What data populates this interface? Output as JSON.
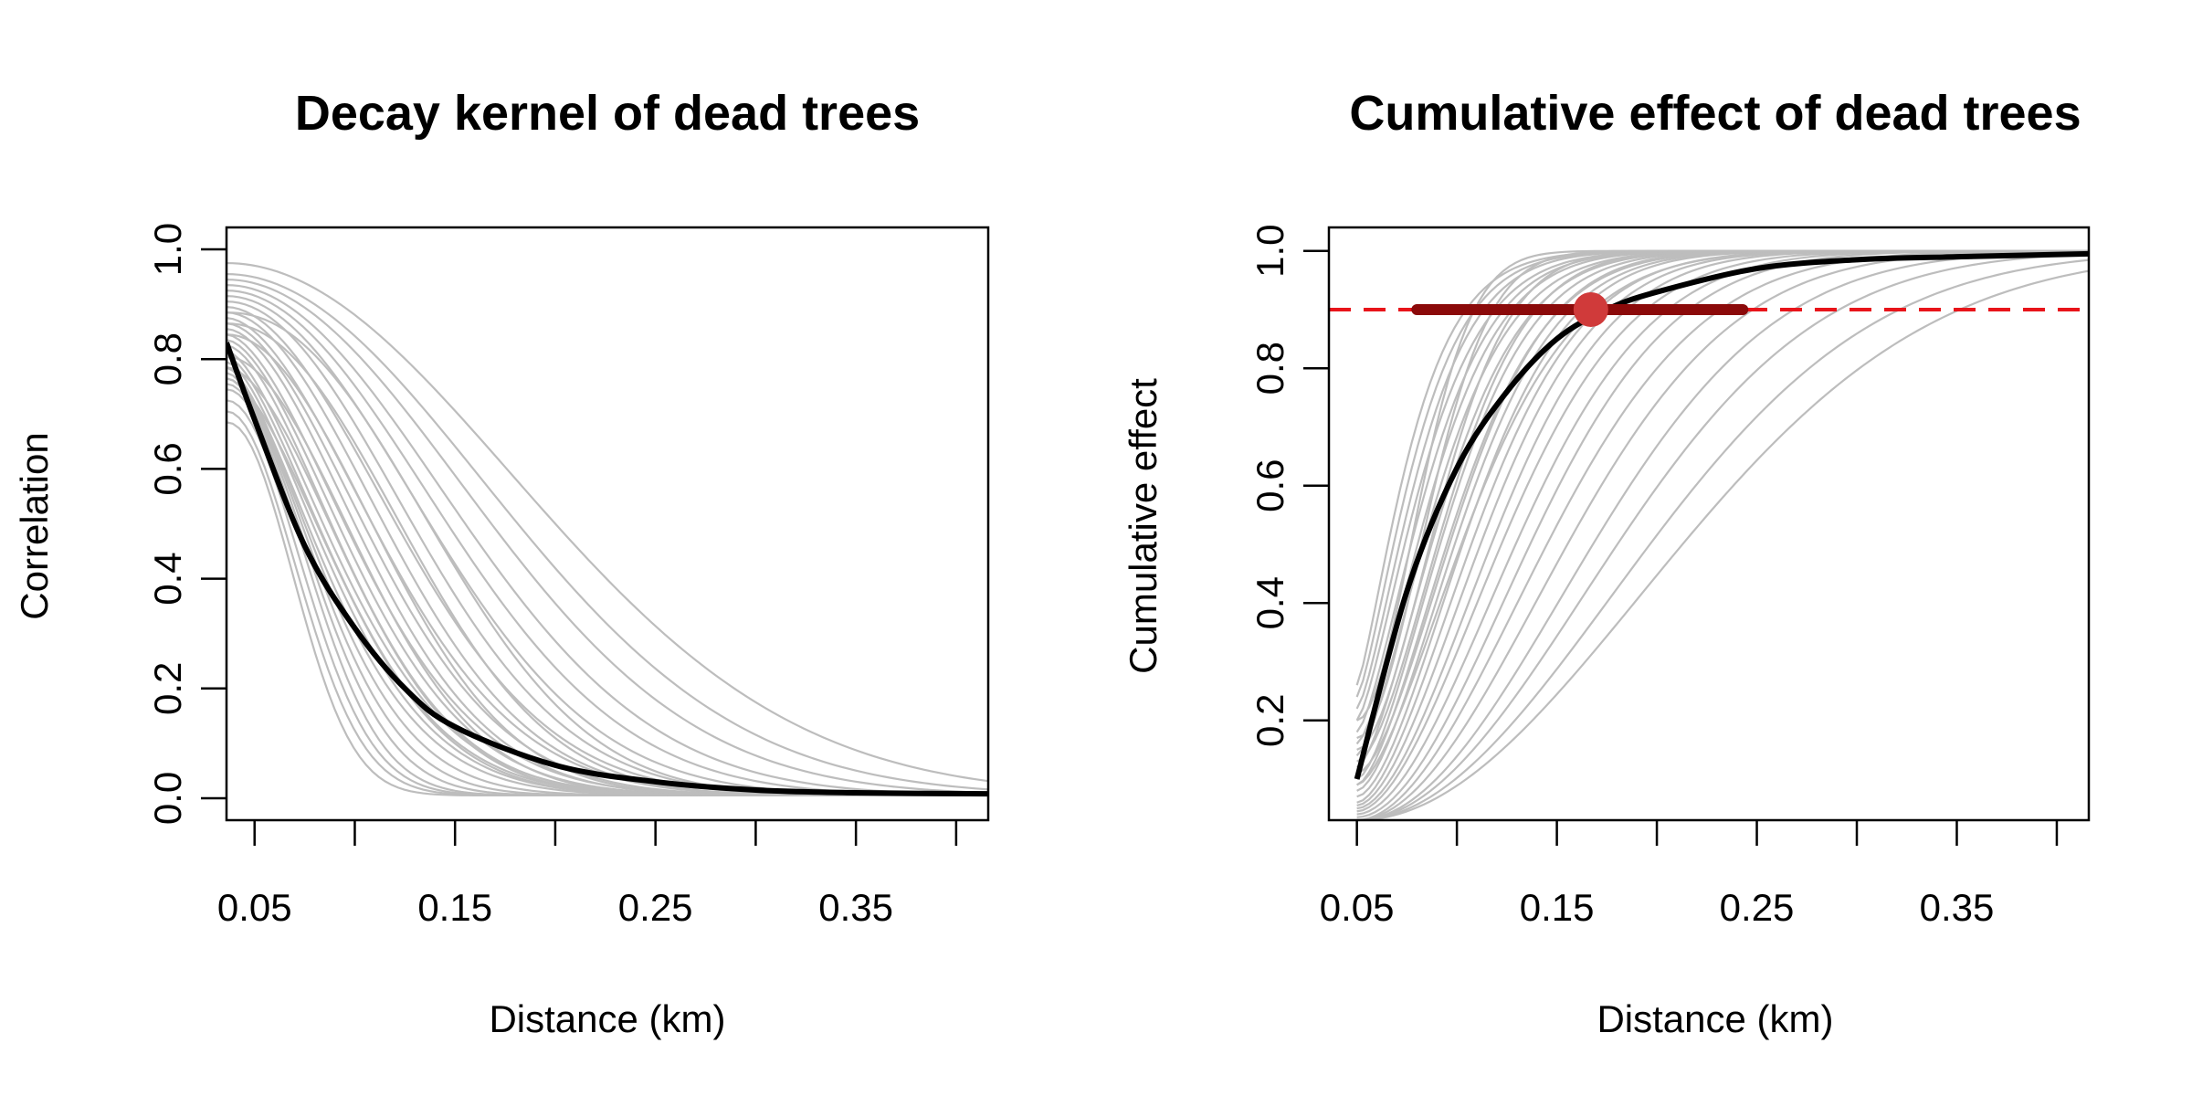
{
  "chart_data": [
    {
      "type": "line",
      "title": "Decay kernel of dead trees",
      "xlabel": "Distance (km)",
      "ylabel": "Correlation",
      "xlim": [
        0.036,
        0.416
      ],
      "ylim": [
        -0.04,
        1.04
      ],
      "x_ticks": [
        0.05,
        0.15,
        0.25,
        0.35
      ],
      "x_minor_ticks": [
        0.05,
        0.1,
        0.15,
        0.2,
        0.25,
        0.3,
        0.35,
        0.4
      ],
      "y_ticks": [
        0.0,
        0.2,
        0.4,
        0.6,
        0.8,
        1.0
      ],
      "mean_curve": {
        "color": "#000000",
        "x": [
          0.036,
          0.05,
          0.075,
          0.1,
          0.125,
          0.15,
          0.2,
          0.25,
          0.3,
          0.35,
          0.416
        ],
        "y": [
          0.83,
          0.69,
          0.46,
          0.31,
          0.2,
          0.13,
          0.06,
          0.03,
          0.015,
          0.01,
          0.008
        ]
      },
      "sample_curves": {
        "color": "#bdbdbd",
        "description_params": "gaussian-like decay y = a*exp(-((x-0.036)/w)^p)",
        "curves": [
          {
            "a": 0.97,
            "w": 0.2,
            "p": 2.0
          },
          {
            "a": 0.95,
            "w": 0.18,
            "p": 2.0
          },
          {
            "a": 0.94,
            "w": 0.165,
            "p": 2.0
          },
          {
            "a": 0.93,
            "w": 0.15,
            "p": 2.0
          },
          {
            "a": 0.92,
            "w": 0.14,
            "p": 2.0
          },
          {
            "a": 0.91,
            "w": 0.13,
            "p": 2.0
          },
          {
            "a": 0.9,
            "w": 0.12,
            "p": 2.0
          },
          {
            "a": 0.89,
            "w": 0.112,
            "p": 1.9
          },
          {
            "a": 0.88,
            "w": 0.105,
            "p": 1.9
          },
          {
            "a": 0.87,
            "w": 0.1,
            "p": 1.8
          },
          {
            "a": 0.86,
            "w": 0.095,
            "p": 1.8
          },
          {
            "a": 0.85,
            "w": 0.09,
            "p": 1.8
          },
          {
            "a": 0.84,
            "w": 0.086,
            "p": 1.7
          },
          {
            "a": 0.83,
            "w": 0.082,
            "p": 1.7
          },
          {
            "a": 0.82,
            "w": 0.078,
            "p": 1.7
          },
          {
            "a": 0.81,
            "w": 0.075,
            "p": 1.6
          },
          {
            "a": 0.8,
            "w": 0.072,
            "p": 1.6
          },
          {
            "a": 0.79,
            "w": 0.069,
            "p": 1.6
          },
          {
            "a": 0.78,
            "w": 0.066,
            "p": 1.6
          },
          {
            "a": 0.77,
            "w": 0.063,
            "p": 1.7
          },
          {
            "a": 0.76,
            "w": 0.06,
            "p": 1.8
          },
          {
            "a": 0.75,
            "w": 0.057,
            "p": 1.9
          },
          {
            "a": 0.74,
            "w": 0.054,
            "p": 2.0
          },
          {
            "a": 0.72,
            "w": 0.051,
            "p": 2.0
          },
          {
            "a": 0.7,
            "w": 0.048,
            "p": 2.0
          },
          {
            "a": 0.68,
            "w": 0.045,
            "p": 2.1
          },
          {
            "a": 0.88,
            "w": 0.13,
            "p": 2.2
          },
          {
            "a": 0.86,
            "w": 0.115,
            "p": 2.1
          },
          {
            "a": 0.84,
            "w": 0.1,
            "p": 2.0
          },
          {
            "a": 0.8,
            "w": 0.088,
            "p": 1.9
          },
          {
            "a": 0.78,
            "w": 0.08,
            "p": 1.8
          },
          {
            "a": 0.76,
            "w": 0.074,
            "p": 1.7
          }
        ]
      }
    },
    {
      "type": "line",
      "title": "Cumulative effect of dead trees",
      "xlabel": "Distance (km)",
      "ylabel": "Cumulative effect",
      "xlim": [
        0.036,
        0.416
      ],
      "ylim": [
        0.03,
        1.04
      ],
      "x_ticks": [
        0.05,
        0.15,
        0.25,
        0.35
      ],
      "x_minor_ticks": [
        0.05,
        0.1,
        0.15,
        0.2,
        0.25,
        0.3,
        0.35,
        0.4
      ],
      "y_ticks": [
        0.2,
        0.4,
        0.6,
        0.8,
        1.0
      ],
      "threshold": {
        "y": 0.9,
        "color": "#e8141a",
        "style": "dashed"
      },
      "interval": {
        "x_low": 0.08,
        "x_high": 0.243,
        "y": 0.9,
        "color": "#8b0a0a"
      },
      "point_estimate": {
        "x": 0.167,
        "y": 0.9,
        "color": "#d03a3a"
      },
      "mean_curve": {
        "color": "#000000",
        "x": [
          0.05,
          0.075,
          0.1,
          0.125,
          0.15,
          0.175,
          0.2,
          0.25,
          0.3,
          0.35,
          0.416
        ],
        "y": [
          0.1,
          0.42,
          0.63,
          0.76,
          0.85,
          0.9,
          0.93,
          0.97,
          0.985,
          0.99,
          0.995
        ]
      },
      "sample_curves": {
        "color": "#bdbdbd",
        "description_params": "sigmoid-like y = 1-(1-y0)*exp(-((x-0.05)/w)^p)",
        "curves": [
          {
            "y0": 0.26,
            "w": 0.032,
            "p": 1.3
          },
          {
            "y0": 0.24,
            "w": 0.035,
            "p": 1.35
          },
          {
            "y0": 0.22,
            "w": 0.038,
            "p": 1.4
          },
          {
            "y0": 0.2,
            "w": 0.041,
            "p": 1.4
          },
          {
            "y0": 0.18,
            "w": 0.044,
            "p": 1.45
          },
          {
            "y0": 0.16,
            "w": 0.047,
            "p": 1.5
          },
          {
            "y0": 0.14,
            "w": 0.05,
            "p": 1.5
          },
          {
            "y0": 0.12,
            "w": 0.054,
            "p": 1.55
          },
          {
            "y0": 0.1,
            "w": 0.058,
            "p": 1.6
          },
          {
            "y0": 0.09,
            "w": 0.062,
            "p": 1.6
          },
          {
            "y0": 0.08,
            "w": 0.066,
            "p": 1.65
          },
          {
            "y0": 0.07,
            "w": 0.07,
            "p": 1.7
          },
          {
            "y0": 0.06,
            "w": 0.075,
            "p": 1.7
          },
          {
            "y0": 0.055,
            "w": 0.08,
            "p": 1.75
          },
          {
            "y0": 0.05,
            "w": 0.086,
            "p": 1.8
          },
          {
            "y0": 0.045,
            "w": 0.092,
            "p": 1.8
          },
          {
            "y0": 0.04,
            "w": 0.1,
            "p": 1.85
          },
          {
            "y0": 0.035,
            "w": 0.108,
            "p": 1.9
          },
          {
            "y0": 0.03,
            "w": 0.118,
            "p": 1.9
          },
          {
            "y0": 0.03,
            "w": 0.13,
            "p": 1.95
          },
          {
            "y0": 0.03,
            "w": 0.145,
            "p": 2.0
          },
          {
            "y0": 0.03,
            "w": 0.16,
            "p": 2.0
          },
          {
            "y0": 0.03,
            "w": 0.18,
            "p": 2.0
          },
          {
            "y0": 0.03,
            "w": 0.2,
            "p": 2.0
          },
          {
            "y0": 0.2,
            "w": 0.04,
            "p": 1.9
          },
          {
            "y0": 0.17,
            "w": 0.046,
            "p": 1.9
          },
          {
            "y0": 0.15,
            "w": 0.052,
            "p": 1.8
          },
          {
            "y0": 0.13,
            "w": 0.057,
            "p": 1.7
          },
          {
            "y0": 0.11,
            "w": 0.064,
            "p": 1.7
          },
          {
            "y0": 0.09,
            "w": 0.072,
            "p": 1.6
          }
        ]
      }
    }
  ]
}
